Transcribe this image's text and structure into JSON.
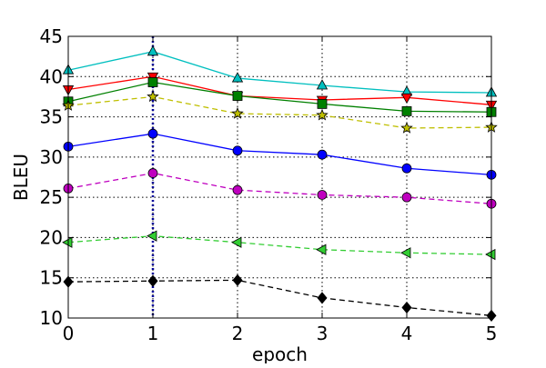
{
  "chart_data": {
    "type": "line",
    "xlabel": "epoch",
    "ylabel": "BLEU",
    "xlim": [
      0,
      5
    ],
    "ylim": [
      10,
      45
    ],
    "x": [
      0,
      1,
      2,
      3,
      4,
      5
    ],
    "x_ticks": [
      "0",
      "1",
      "2",
      "3",
      "4",
      "5"
    ],
    "y_ticks": [
      "10",
      "15",
      "20",
      "25",
      "30",
      "35",
      "40",
      "45"
    ],
    "grid": true,
    "highlight_x": 1,
    "series": [
      {
        "color": "#00bfbf",
        "marker": "triangle-up",
        "dash": "solid",
        "values": [
          40.8,
          43.1,
          39.8,
          38.9,
          38.1,
          38.0
        ]
      },
      {
        "color": "#ff0000",
        "marker": "triangle-down",
        "dash": "solid",
        "values": [
          38.4,
          40.0,
          37.6,
          37.1,
          37.4,
          36.5
        ]
      },
      {
        "color": "#008000",
        "marker": "square",
        "dash": "solid",
        "values": [
          36.9,
          39.3,
          37.6,
          36.6,
          35.7,
          35.6
        ]
      },
      {
        "color": "#bfbf00",
        "marker": "star",
        "dash": "dashed",
        "values": [
          36.4,
          37.5,
          35.4,
          35.2,
          33.6,
          33.7
        ]
      },
      {
        "color": "#0000ff",
        "marker": "circle",
        "dash": "solid",
        "values": [
          31.3,
          32.9,
          30.8,
          30.3,
          28.6,
          27.8
        ]
      },
      {
        "color": "#bf00bf",
        "marker": "circle",
        "dash": "dashed",
        "values": [
          26.1,
          28.0,
          25.9,
          25.3,
          25.0,
          24.2
        ]
      },
      {
        "color": "#32cd32",
        "marker": "triangle-left",
        "dash": "dashed",
        "values": [
          19.4,
          20.2,
          19.4,
          18.5,
          18.1,
          17.9
        ]
      },
      {
        "color": "#000000",
        "marker": "diamond",
        "dash": "dashed",
        "values": [
          14.5,
          14.6,
          14.7,
          12.5,
          11.3,
          10.3
        ]
      }
    ]
  }
}
